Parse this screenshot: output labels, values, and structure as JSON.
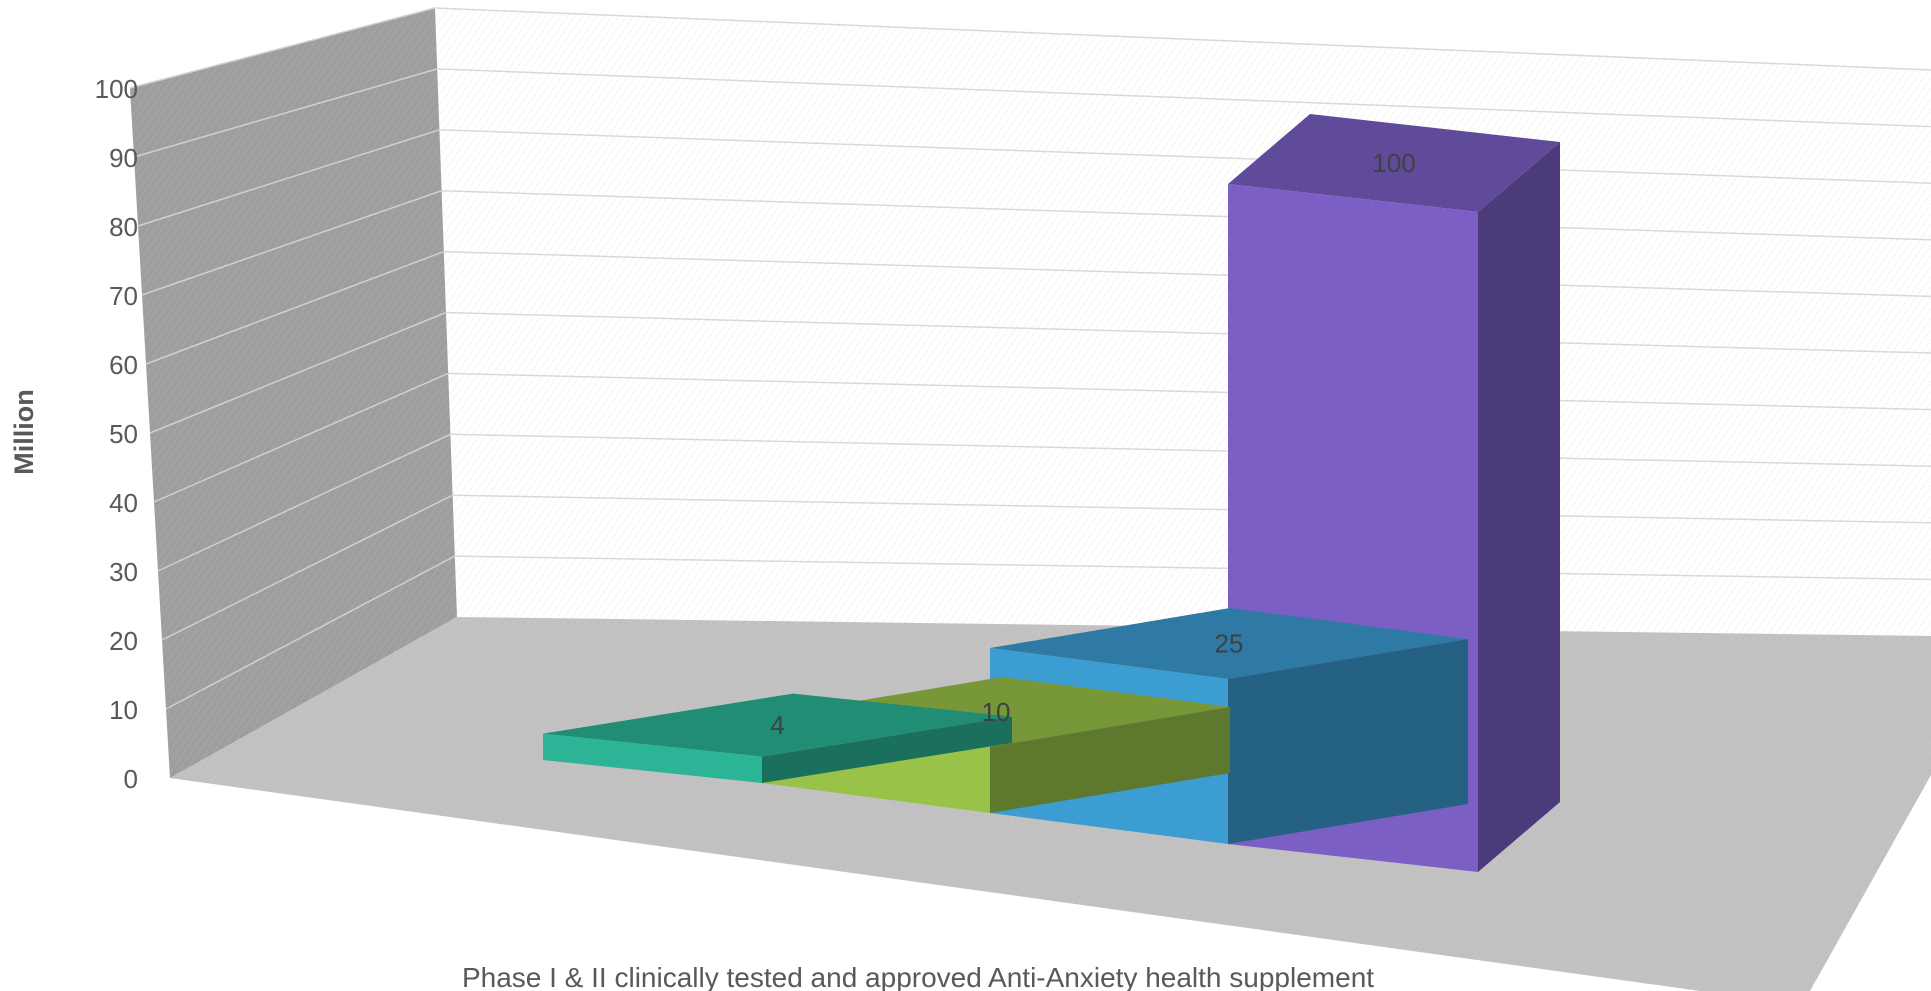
{
  "chart_data": {
    "type": "bar",
    "variant": "3d-column",
    "categories": [
      "",
      "",
      "",
      ""
    ],
    "values": [
      4,
      10,
      25,
      100
    ],
    "data_labels": [
      "4",
      "10",
      "25",
      "100"
    ],
    "colors": [
      "#2bb596",
      "#98c248",
      "#3c9dd2",
      "#7b5fc5"
    ],
    "ylabel": "Million",
    "xlabel": "Phase I & II clinically tested and approved Anti-Anxiety health supplement",
    "ylim": [
      0,
      100
    ],
    "yticks": [
      0,
      10,
      20,
      30,
      40,
      50,
      60,
      70,
      80,
      90,
      100
    ],
    "yticks_text": [
      "0",
      "10",
      "20",
      "30",
      "40",
      "50",
      "60",
      "70",
      "80",
      "90",
      "100"
    ],
    "grid": true,
    "legend": "none"
  }
}
